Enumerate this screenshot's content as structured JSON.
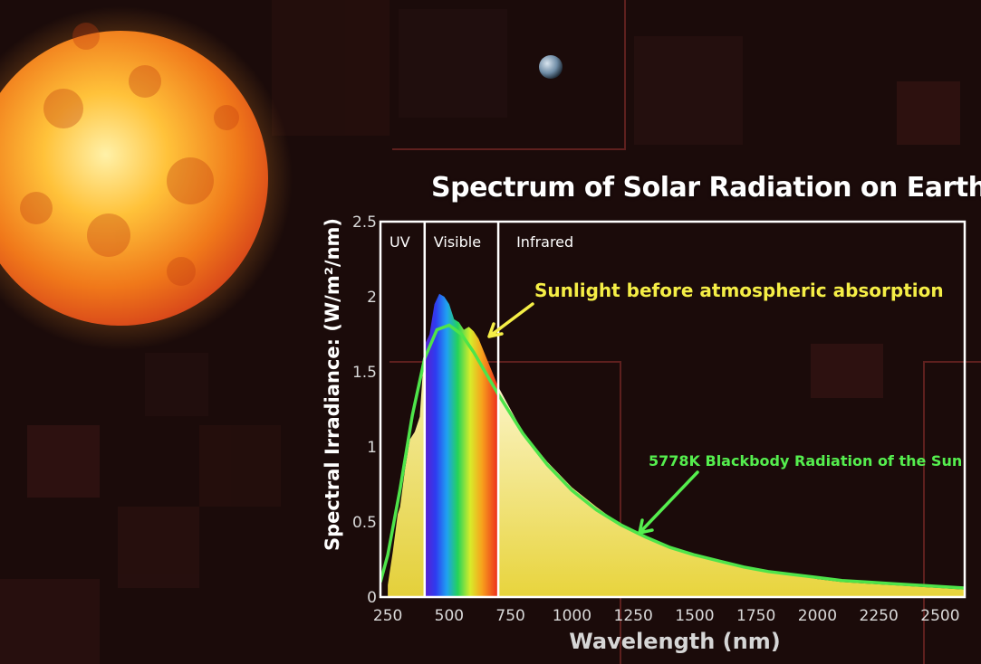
{
  "chart_data": {
    "type": "area",
    "title": "Spectrum of Solar Radiation on Earth",
    "xlabel": "Wavelength (nm)",
    "ylabel": "Spectral Irradiance: (W/m²/nm)",
    "xlim": [
      220,
      2600
    ],
    "ylim": [
      0,
      2.5
    ],
    "x_ticks": [
      250,
      500,
      750,
      1000,
      1250,
      1500,
      1750,
      2000,
      2250,
      2500
    ],
    "y_ticks": [
      0,
      0.5,
      1,
      1.5,
      2,
      2.5
    ],
    "y_tick_labels": [
      "0",
      "0.5",
      "1",
      "1.5",
      "2",
      "2.5"
    ],
    "regions": [
      {
        "label": "UV",
        "from": 220,
        "to": 400
      },
      {
        "label": "Visible",
        "from": 400,
        "to": 700
      },
      {
        "label": "Infrared",
        "from": 700,
        "to": 2600
      }
    ],
    "series": [
      {
        "name": "Sunlight before atmospheric absorption",
        "color": "#f2e34a",
        "x": [
          250,
          270,
          290,
          300,
          320,
          340,
          360,
          380,
          400,
          420,
          440,
          460,
          480,
          500,
          520,
          540,
          560,
          580,
          600,
          620,
          650,
          700,
          750,
          800,
          900,
          1000,
          1100,
          1200,
          1300,
          1400,
          1500,
          1600,
          1700,
          1800,
          1900,
          2000,
          2100,
          2200,
          2300,
          2400,
          2500,
          2600
        ],
        "y": [
          0.08,
          0.3,
          0.55,
          0.6,
          0.85,
          1.05,
          1.1,
          1.2,
          1.68,
          1.75,
          1.95,
          2.02,
          2.0,
          1.95,
          1.85,
          1.83,
          1.78,
          1.8,
          1.77,
          1.72,
          1.6,
          1.4,
          1.25,
          1.1,
          0.9,
          0.73,
          0.6,
          0.48,
          0.4,
          0.34,
          0.28,
          0.24,
          0.2,
          0.17,
          0.15,
          0.12,
          0.1,
          0.09,
          0.08,
          0.07,
          0.06,
          0.05
        ]
      },
      {
        "name": "5778K Blackbody Radiation of the Sun",
        "color": "#4ee44a",
        "x": [
          220,
          250,
          300,
          350,
          400,
          450,
          500,
          550,
          600,
          650,
          700,
          800,
          900,
          1000,
          1100,
          1200,
          1300,
          1400,
          1500,
          1600,
          1700,
          1800,
          1900,
          2000,
          2100,
          2200,
          2300,
          2400,
          2500,
          2600
        ],
        "y": [
          0.1,
          0.28,
          0.72,
          1.21,
          1.59,
          1.78,
          1.81,
          1.75,
          1.63,
          1.49,
          1.35,
          1.09,
          0.88,
          0.71,
          0.58,
          0.48,
          0.4,
          0.33,
          0.28,
          0.24,
          0.2,
          0.17,
          0.15,
          0.13,
          0.11,
          0.1,
          0.09,
          0.08,
          0.07,
          0.06
        ]
      }
    ],
    "annotations": [
      {
        "text": "Sunlight before atmospheric absorption",
        "color": "#f5ee46",
        "points_to": [
          600,
          1.72
        ]
      },
      {
        "text": "5778K Blackbody Radiation of the Sun",
        "color": "#55ee4e",
        "points_to": [
          1250,
          0.42
        ]
      }
    ],
    "grid": false
  },
  "colors": {
    "background": "#1b0b0a",
    "sun": "#f59a1e",
    "frame": "#ffffff",
    "axis_text": "#d9d9d9"
  }
}
